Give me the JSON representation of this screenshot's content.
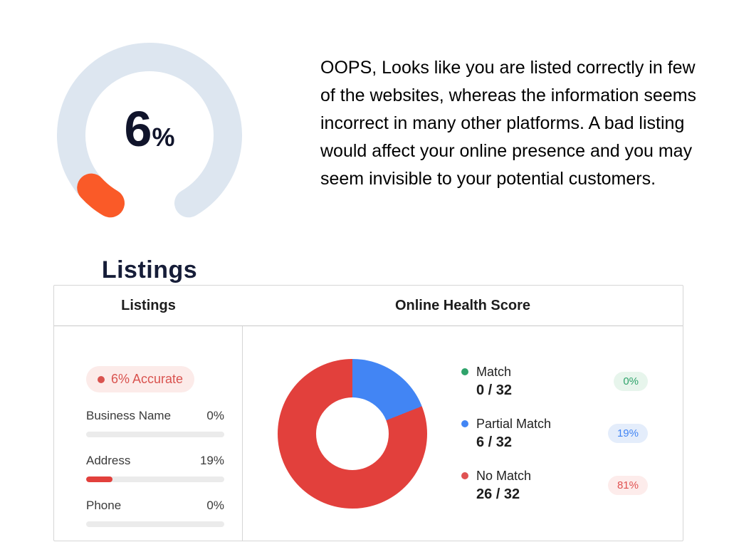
{
  "gauge": {
    "value": "6",
    "unit": "%",
    "label": "Listings",
    "accent_color": "#fa5a28",
    "track_color": "#dde6f0"
  },
  "description": "OOPS, Looks like you are listed correctly in few of the websites, whereas the information seems incorrect in many other platforms. A bad listing would affect your online presence and you may seem invisible to your potential customers.",
  "card": {
    "left_header": "Listings",
    "right_header": "Online Health Score",
    "accuracy_badge": "6% Accurate",
    "accuracy_color": "#d9534f",
    "accuracy_bg": "#fcebe9",
    "metrics": [
      {
        "label": "Business Name",
        "value_label": "0%",
        "percent": 0,
        "bar_color": "#e2403c"
      },
      {
        "label": "Address",
        "value_label": "19%",
        "percent": 19,
        "bar_color": "#e2403c"
      },
      {
        "label": "Phone",
        "value_label": "0%",
        "percent": 0,
        "bar_color": "#e2403c"
      }
    ],
    "legend": [
      {
        "label": "Match",
        "count": "0 / 32",
        "badge": "0%",
        "color": "#2fa36b",
        "badge_bg": "#e7f5ec"
      },
      {
        "label": "Partial Match",
        "count": "6 / 32",
        "badge": "19%",
        "color": "#4285f4",
        "badge_bg": "#e4edfb"
      },
      {
        "label": "No Match",
        "count": "26 / 32",
        "badge": "81%",
        "color": "#e05252",
        "badge_bg": "#fdeceb"
      }
    ]
  },
  "chart_data": [
    {
      "type": "gauge",
      "title": "Listings",
      "value": 6,
      "max": 100,
      "unit": "%",
      "sweep_deg": 300,
      "colors": {
        "value": "#fa5a28",
        "track": "#dde6f0"
      }
    },
    {
      "type": "pie",
      "title": "Online Health Score",
      "labels": [
        "Match",
        "Partial Match",
        "No Match"
      ],
      "values": [
        0,
        6,
        26
      ],
      "total": 32,
      "percentages": [
        0,
        19,
        81
      ],
      "colors": [
        "#2fa36b",
        "#4285f4",
        "#e2403c"
      ],
      "legend_position": "right"
    },
    {
      "type": "bar",
      "title": "Listings field accuracy",
      "categories": [
        "Business Name",
        "Address",
        "Phone"
      ],
      "values": [
        0,
        19,
        0
      ],
      "unit": "%",
      "ylim": [
        0,
        100
      ]
    }
  ]
}
